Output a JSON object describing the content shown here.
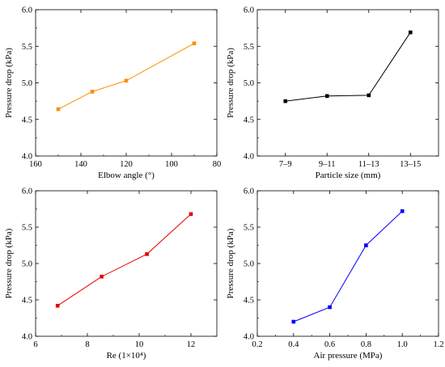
{
  "chart_data": [
    {
      "id": "elbow",
      "type": "line",
      "xlabel": "Elbow angle (°)",
      "ylabel": "Pressure drop (kPa)",
      "x_reversed": true,
      "xlim": [
        160,
        80
      ],
      "ylim": [
        4.0,
        6.0
      ],
      "x_ticks": [
        160,
        140,
        120,
        100,
        80
      ],
      "x_tick_labels": [
        "160",
        "140",
        "120",
        "100",
        "80"
      ],
      "y_ticks": [
        4.0,
        4.5,
        5.0,
        5.5,
        6.0
      ],
      "y_tick_labels": [
        "4.0",
        "4.5",
        "5.0",
        "5.5",
        "6.0"
      ],
      "grid": false,
      "color": "#ff8c00",
      "series": [
        {
          "x": [
            150,
            135,
            120,
            90
          ],
          "values": [
            4.64,
            4.88,
            5.03,
            5.54
          ]
        }
      ]
    },
    {
      "id": "particle",
      "type": "line",
      "xlabel": "Particle size (mm)",
      "ylabel": "Pressure drop (kPa)",
      "categories": [
        "7–9",
        "9–11",
        "11–13",
        "13–15"
      ],
      "ylim": [
        4.0,
        6.0
      ],
      "y_ticks": [
        4.0,
        4.5,
        5.0,
        5.5,
        6.0
      ],
      "y_tick_labels": [
        "4.0",
        "4.5",
        "5.0",
        "5.5",
        "6.0"
      ],
      "grid": false,
      "color": "#000000",
      "series": [
        {
          "values": [
            4.75,
            4.82,
            4.83,
            5.69
          ]
        }
      ]
    },
    {
      "id": "re",
      "type": "line",
      "xlabel": "Re (1×10⁴)",
      "ylabel": "Pressure drop (kPa)",
      "xlim": [
        6,
        13
      ],
      "ylim": [
        4.0,
        6.0
      ],
      "x_ticks": [
        6,
        8,
        10,
        12
      ],
      "x_tick_labels": [
        "6",
        "8",
        "10",
        "12"
      ],
      "y_ticks": [
        4.0,
        4.5,
        5.0,
        5.5,
        6.0
      ],
      "y_tick_labels": [
        "4.0",
        "4.5",
        "5.0",
        "5.5",
        "6.0"
      ],
      "grid": false,
      "color": "#e60000",
      "series": [
        {
          "x": [
            6.85,
            8.55,
            10.3,
            12.0
          ],
          "values": [
            4.42,
            4.82,
            5.13,
            5.68
          ]
        }
      ]
    },
    {
      "id": "air",
      "type": "line",
      "xlabel": "Air pressure (MPa)",
      "ylabel": "Pressure drop (kPa)",
      "xlim": [
        0.2,
        1.2
      ],
      "ylim": [
        4.0,
        6.0
      ],
      "x_ticks": [
        0.2,
        0.4,
        0.6,
        0.8,
        1.0,
        1.2
      ],
      "x_tick_labels": [
        "0.2",
        "0.4",
        "0.6",
        "0.8",
        "1.0",
        "1.2"
      ],
      "y_ticks": [
        4.0,
        4.5,
        5.0,
        5.5,
        6.0
      ],
      "y_tick_labels": [
        "4.0",
        "4.5",
        "5.0",
        "5.5",
        "6.0"
      ],
      "grid": false,
      "color": "#0000ff",
      "series": [
        {
          "x": [
            0.4,
            0.6,
            0.8,
            1.0
          ],
          "values": [
            4.2,
            4.4,
            5.25,
            5.72
          ]
        }
      ]
    }
  ]
}
